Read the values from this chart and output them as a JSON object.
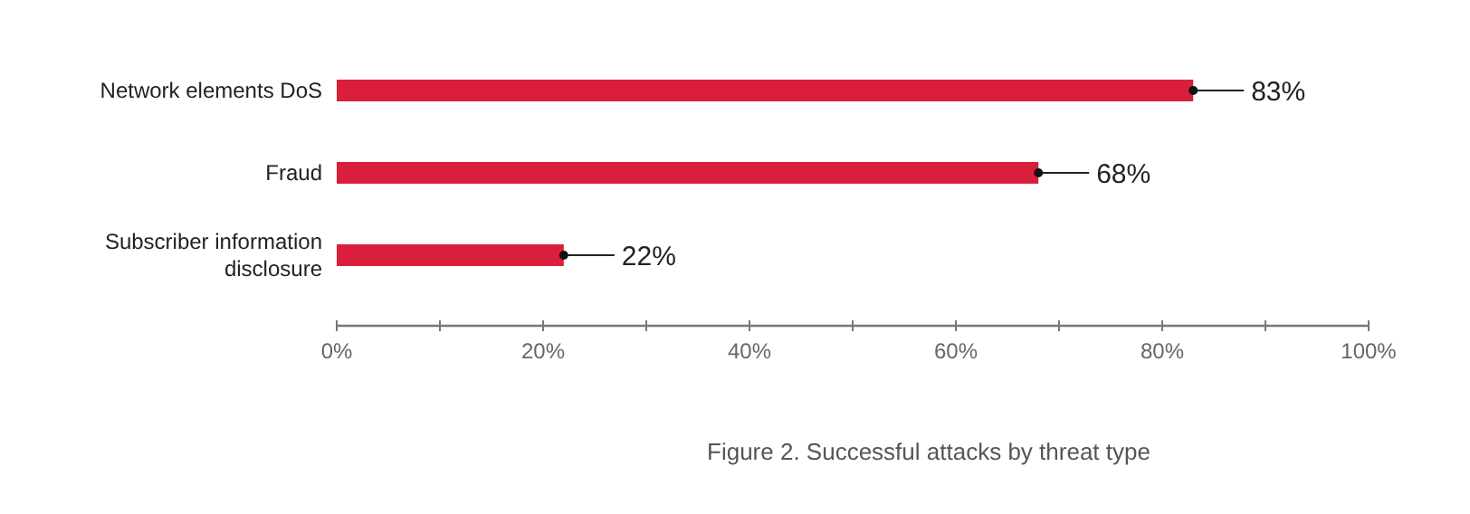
{
  "chart_data": {
    "type": "bar",
    "orientation": "horizontal",
    "categories": [
      "Network elements DoS",
      "Fraud",
      "Subscriber information disclosure"
    ],
    "values": [
      83,
      68,
      22
    ],
    "color": "#d91f3b",
    "value_labels": [
      "83%",
      "68%",
      "22%"
    ],
    "xlim": [
      0,
      100
    ],
    "xticks": [
      {
        "value": 0,
        "label": "0%"
      },
      {
        "value": 10,
        "label": null
      },
      {
        "value": 20,
        "label": "20%"
      },
      {
        "value": 30,
        "label": null
      },
      {
        "value": 40,
        "label": "40%"
      },
      {
        "value": 50,
        "label": null
      },
      {
        "value": 60,
        "label": "60%"
      },
      {
        "value": 70,
        "label": null
      },
      {
        "value": 80,
        "label": "80%"
      },
      {
        "value": 90,
        "label": null
      },
      {
        "value": 100,
        "label": "100%"
      }
    ],
    "annotations": [
      "Figure 2. Successful attacks by threat type"
    ]
  }
}
